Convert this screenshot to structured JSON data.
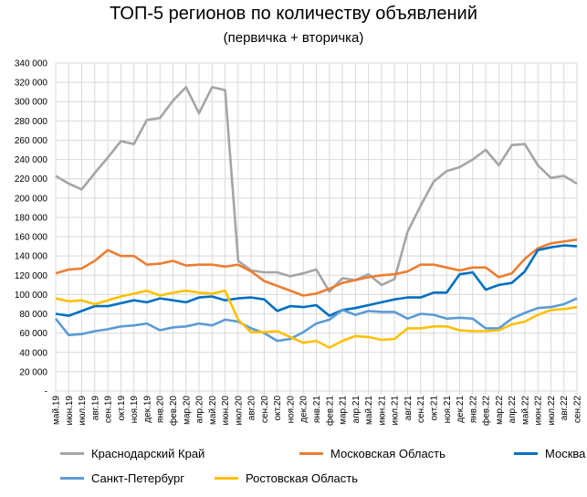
{
  "chart_data": {
    "type": "line",
    "title": "ТОП-5 регионов по количеству объявлений",
    "subtitle": "(первичка + вторичка)",
    "xlabel": "",
    "ylabel": "",
    "ylim": [
      0,
      340000
    ],
    "yticks": [
      0,
      20000,
      40000,
      60000,
      80000,
      100000,
      120000,
      140000,
      160000,
      180000,
      200000,
      220000,
      240000,
      260000,
      280000,
      300000,
      320000,
      340000
    ],
    "ytick_labels": [
      "-",
      "20 000",
      "40 000",
      "60 000",
      "80 000",
      "100 000",
      "120 000",
      "140 000",
      "160 000",
      "180 000",
      "200 000",
      "220 000",
      "240 000",
      "260 000",
      "280 000",
      "300 000",
      "320 000",
      "340 000"
    ],
    "grid": true,
    "legend_position": "bottom",
    "categories": [
      "май.19",
      "июн.19",
      "июл.19",
      "авг.19",
      "сен.19",
      "окт.19",
      "ноя.19",
      "дек.19",
      "янв.20",
      "фев.20",
      "мар.20",
      "апр.20",
      "май.20",
      "июн.20",
      "июл.20",
      "авг.20",
      "сен.20",
      "окт.20",
      "ноя.20",
      "дек.20",
      "янв.21",
      "фев.21",
      "мар.21",
      "апр.21",
      "май.21",
      "июн.21",
      "июл.21",
      "авг.21",
      "сен.21",
      "окт.21",
      "ноя.21",
      "дек.21",
      "янв.22",
      "фев.22",
      "мар.22",
      "апр.22",
      "май.22",
      "июн.22",
      "июл.22",
      "авг.22",
      "сен.22"
    ],
    "series": [
      {
        "name": "Краснодарский Край",
        "color": "#a5a5a5",
        "values": [
          223000,
          215000,
          209000,
          226000,
          242000,
          259000,
          256000,
          281000,
          283000,
          301000,
          315000,
          288000,
          315000,
          312000,
          135000,
          125000,
          123000,
          123000,
          119000,
          122000,
          126000,
          103000,
          117000,
          115000,
          121000,
          110000,
          116000,
          165000,
          192000,
          217000,
          228000,
          232000,
          240000,
          250000,
          234000,
          255000,
          256000,
          234000,
          221000,
          223000,
          215000
        ]
      },
      {
        "name": "Московская Область",
        "color": "#ed7d31",
        "values": [
          122000,
          126000,
          127000,
          135000,
          146000,
          140000,
          140000,
          131000,
          132000,
          135000,
          130000,
          131000,
          131000,
          129000,
          131000,
          124000,
          114000,
          109000,
          104000,
          99000,
          101000,
          106000,
          112000,
          115000,
          118000,
          120000,
          121000,
          124000,
          131000,
          131000,
          128000,
          125000,
          128000,
          128000,
          118000,
          122000,
          137000,
          148000,
          153000,
          155000,
          157000
        ]
      },
      {
        "name": "Москва",
        "color": "#0070c0",
        "values": [
          80000,
          78000,
          83000,
          88000,
          88000,
          91000,
          94000,
          92000,
          96000,
          94000,
          92000,
          97000,
          98000,
          94000,
          96000,
          97000,
          95000,
          83000,
          88000,
          87000,
          89000,
          78000,
          84000,
          86000,
          89000,
          92000,
          95000,
          97000,
          97000,
          102000,
          102000,
          121000,
          123000,
          105000,
          110000,
          112000,
          124000,
          146000,
          149000,
          151000,
          150000
        ]
      },
      {
        "name": "Санкт-Петербург",
        "color": "#5b9bd5",
        "values": [
          75000,
          58000,
          59000,
          62000,
          64000,
          67000,
          68000,
          70000,
          63000,
          66000,
          67000,
          70000,
          68000,
          74000,
          72000,
          65000,
          60000,
          52000,
          54000,
          61000,
          70000,
          74000,
          84000,
          79000,
          83000,
          82000,
          82000,
          75000,
          80000,
          79000,
          75000,
          76000,
          75000,
          65000,
          65000,
          75000,
          81000,
          86000,
          87000,
          90000,
          96000
        ]
      },
      {
        "name": "Ростовская Область",
        "color": "#ffc000",
        "values": [
          96000,
          93000,
          94000,
          90000,
          94000,
          98000,
          101000,
          104000,
          99000,
          102000,
          104000,
          102000,
          101000,
          104000,
          74000,
          61000,
          61000,
          62000,
          56000,
          50000,
          52000,
          45000,
          52000,
          57000,
          56000,
          53000,
          54000,
          65000,
          65000,
          67000,
          67000,
          63000,
          62000,
          62000,
          63000,
          69000,
          72000,
          79000,
          84000,
          85000,
          87000
        ]
      }
    ]
  }
}
